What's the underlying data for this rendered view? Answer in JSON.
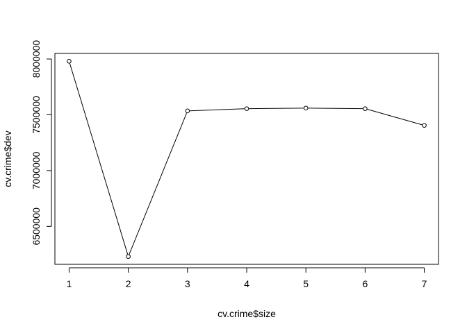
{
  "chart_data": {
    "type": "line",
    "xlabel": "cv.crime$size",
    "ylabel": "cv.crime$dev",
    "x": [
      1,
      2,
      3,
      4,
      5,
      6,
      7
    ],
    "series": [
      {
        "values": [
          7980000,
          6230000,
          7535000,
          7555000,
          7560000,
          7555000,
          7405000
        ]
      }
    ],
    "xlim": [
      0.76,
      7.24
    ],
    "ylim": [
      6160000,
      8050000
    ],
    "x_ticks": [
      1,
      2,
      3,
      4,
      5,
      6,
      7
    ],
    "y_ticks": [
      6500000,
      7000000,
      7500000,
      8000000
    ],
    "x_tick_labels": [
      "1",
      "2",
      "3",
      "4",
      "5",
      "6",
      "7"
    ],
    "y_tick_labels": [
      "6500000",
      "7000000",
      "7500000",
      "8000000"
    ],
    "markers": "open-circle",
    "grid": false,
    "colors": {
      "line": "#000000",
      "marker_fill": "#ffffff",
      "background": "#ffffff"
    }
  }
}
